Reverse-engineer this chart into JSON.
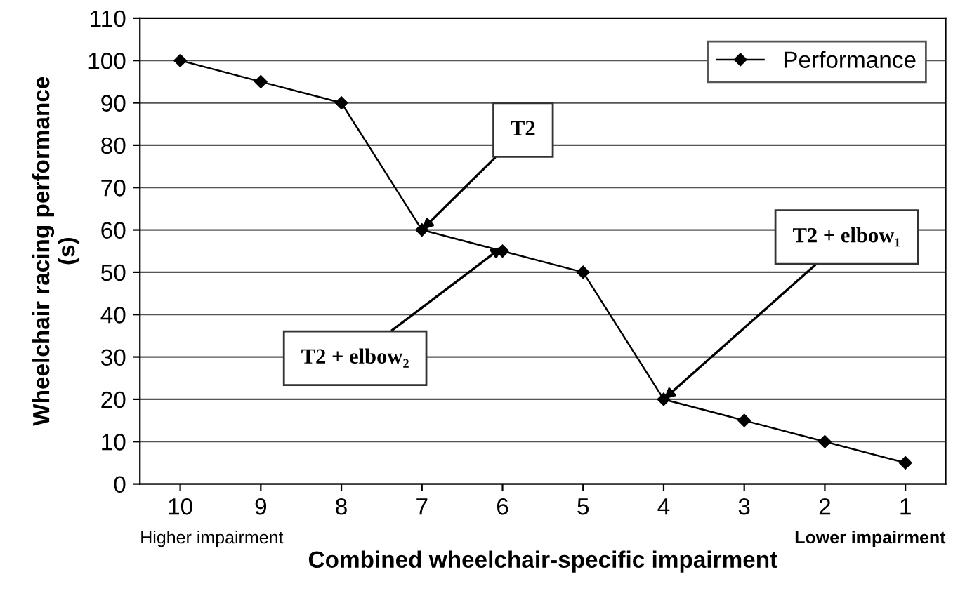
{
  "chart_data": {
    "type": "line",
    "xlabel": "Combined wheelchair-specific impairment",
    "ylabel": "Wheelchair racing performance\n(s)",
    "categories": [
      "10",
      "9",
      "8",
      "7",
      "6",
      "5",
      "4",
      "3",
      "2",
      "1"
    ],
    "series": [
      {
        "name": "Performance",
        "color": "#000000",
        "values": [
          100,
          95,
          90,
          60,
          55,
          50,
          20,
          15,
          10,
          5
        ]
      }
    ],
    "ylim": [
      0,
      110
    ],
    "yticks": [
      0,
      10,
      20,
      30,
      40,
      50,
      60,
      70,
      80,
      90,
      100,
      110
    ],
    "grid": "y",
    "legend": "top right",
    "marker": "diamond",
    "line_style": "solid",
    "annotations": [
      {
        "text": "T2",
        "x": "7",
        "y": 60
      },
      {
        "text": "T2 + elbow₁",
        "x": "4",
        "y": 20
      },
      {
        "text": "T2 + elbow₂",
        "x": "6",
        "y": 56
      },
      "Higher impairment",
      "Lower impairment"
    ]
  }
}
